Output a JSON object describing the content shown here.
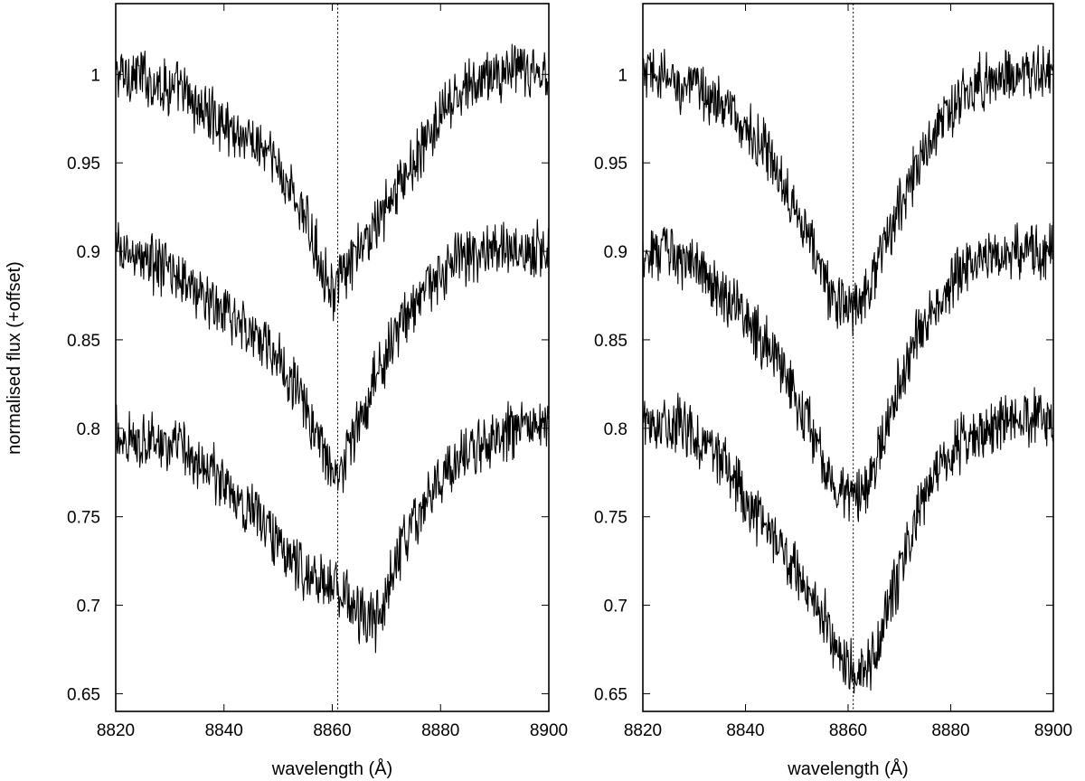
{
  "figure": {
    "ylabel": "normalised flux (+offset)"
  },
  "chart_data": [
    {
      "type": "line",
      "panel": "left",
      "xlabel": "wavelength (Å)",
      "ylabel": "normalised flux (+offset)",
      "xlim": [
        8820,
        8900
      ],
      "ylim": [
        0.64,
        1.04
      ],
      "xticks": [
        "8820",
        "8840",
        "8860",
        "8880",
        "8900"
      ],
      "yticks": [
        "0.65",
        "0.7",
        "0.75",
        "0.8",
        "0.85",
        "0.9",
        "0.95",
        "1"
      ],
      "reference_line_x": 8861,
      "reference_line_style": "dotted",
      "line_color": "#000000",
      "grid": false,
      "series": [
        {
          "x": [
            8820,
            8824,
            8828,
            8832,
            8836,
            8840,
            8844,
            8848,
            8850,
            8852,
            8854,
            8856,
            8858,
            8860,
            8862,
            8864,
            8866,
            8868,
            8870,
            8872,
            8876,
            8880,
            8884,
            8888,
            8892,
            8896,
            8900
          ],
          "y": [
            1.0,
            1.0,
            0.995,
            0.99,
            0.98,
            0.972,
            0.965,
            0.955,
            0.947,
            0.937,
            0.925,
            0.91,
            0.893,
            0.878,
            0.885,
            0.895,
            0.905,
            0.915,
            0.925,
            0.935,
            0.955,
            0.975,
            0.99,
            0.998,
            1.002,
            1.0,
            1.0
          ]
        },
        {
          "x": [
            8820,
            8824,
            8828,
            8832,
            8836,
            8840,
            8844,
            8848,
            8850,
            8852,
            8854,
            8856,
            8858,
            8860,
            8862,
            8864,
            8866,
            8868,
            8870,
            8872,
            8876,
            8880,
            8884,
            8888,
            8892,
            8896,
            8900
          ],
          "y": [
            0.9,
            0.897,
            0.892,
            0.885,
            0.875,
            0.865,
            0.857,
            0.848,
            0.84,
            0.83,
            0.818,
            0.805,
            0.79,
            0.775,
            0.78,
            0.795,
            0.812,
            0.828,
            0.842,
            0.855,
            0.873,
            0.888,
            0.896,
            0.9,
            0.902,
            0.9,
            0.9
          ]
        },
        {
          "x": [
            8820,
            8824,
            8828,
            8832,
            8836,
            8840,
            8844,
            8848,
            8852,
            8856,
            8858,
            8860,
            8862,
            8864,
            8866,
            8868,
            8870,
            8872,
            8876,
            8880,
            8884,
            8888,
            8892,
            8896,
            8900
          ],
          "y": [
            0.795,
            0.795,
            0.792,
            0.788,
            0.78,
            0.768,
            0.757,
            0.745,
            0.728,
            0.715,
            0.712,
            0.71,
            0.706,
            0.698,
            0.692,
            0.69,
            0.705,
            0.725,
            0.753,
            0.772,
            0.785,
            0.792,
            0.797,
            0.8,
            0.8
          ]
        }
      ]
    },
    {
      "type": "line",
      "panel": "right",
      "xlabel": "wavelength (Å)",
      "ylabel": "",
      "xlim": [
        8820,
        8900
      ],
      "ylim": [
        0.64,
        1.04
      ],
      "xticks": [
        "8820",
        "8840",
        "8860",
        "8880",
        "8900"
      ],
      "yticks": [
        "0.65",
        "0.7",
        "0.75",
        "0.8",
        "0.85",
        "0.9",
        "0.95",
        "1"
      ],
      "reference_line_x": 8861,
      "reference_line_style": "dotted",
      "line_color": "#000000",
      "grid": false,
      "series": [
        {
          "x": [
            8820,
            8824,
            8828,
            8832,
            8836,
            8840,
            8844,
            8848,
            8850,
            8852,
            8854,
            8856,
            8858,
            8860,
            8862,
            8864,
            8866,
            8868,
            8870,
            8872,
            8876,
            8880,
            8884,
            8888,
            8892,
            8896,
            8900
          ],
          "y": [
            1.0,
            0.998,
            0.994,
            0.99,
            0.982,
            0.97,
            0.955,
            0.937,
            0.925,
            0.91,
            0.895,
            0.88,
            0.87,
            0.868,
            0.872,
            0.882,
            0.895,
            0.91,
            0.925,
            0.94,
            0.962,
            0.98,
            0.992,
            0.998,
            1.0,
            1.0,
            1.002
          ]
        },
        {
          "x": [
            8820,
            8824,
            8828,
            8832,
            8836,
            8840,
            8844,
            8848,
            8850,
            8852,
            8854,
            8856,
            8858,
            8860,
            8862,
            8864,
            8866,
            8868,
            8870,
            8872,
            8876,
            8880,
            8884,
            8888,
            8892,
            8896,
            8900
          ],
          "y": [
            0.9,
            0.9,
            0.895,
            0.888,
            0.875,
            0.862,
            0.848,
            0.83,
            0.818,
            0.805,
            0.79,
            0.775,
            0.765,
            0.762,
            0.76,
            0.768,
            0.785,
            0.805,
            0.825,
            0.842,
            0.865,
            0.882,
            0.893,
            0.898,
            0.9,
            0.9,
            0.9
          ]
        },
        {
          "x": [
            8820,
            8824,
            8828,
            8832,
            8836,
            8840,
            8844,
            8848,
            8850,
            8852,
            8854,
            8856,
            8858,
            8860,
            8862,
            8864,
            8866,
            8868,
            8870,
            8872,
            8876,
            8880,
            8884,
            8888,
            8892,
            8896,
            8900
          ],
          "y": [
            0.805,
            0.805,
            0.8,
            0.792,
            0.778,
            0.76,
            0.742,
            0.728,
            0.72,
            0.71,
            0.7,
            0.688,
            0.675,
            0.668,
            0.662,
            0.665,
            0.678,
            0.698,
            0.718,
            0.738,
            0.765,
            0.785,
            0.795,
            0.8,
            0.805,
            0.805,
            0.805
          ]
        }
      ]
    }
  ]
}
